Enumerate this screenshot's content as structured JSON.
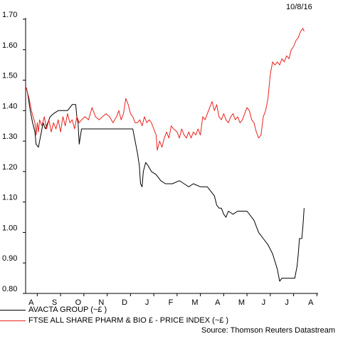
{
  "date_label": "10/8/16",
  "source_label": "Source: Thomson Reuters Datastream",
  "chart_data": {
    "type": "line",
    "x": [
      "A",
      "S",
      "O",
      "N",
      "D",
      "J",
      "F",
      "M",
      "A",
      "M",
      "J",
      "J",
      "A"
    ],
    "ylim": [
      0.8,
      1.7
    ],
    "yticks": [
      "1.70",
      "1.60",
      "1.50",
      "1.40",
      "1.30",
      "1.20",
      "1.10",
      "1.00",
      "0.90",
      "0.80"
    ],
    "grid": false,
    "legend_position": "bottom",
    "series": [
      {
        "name": "AVACTA GROUP (~£ )",
        "color": "#000000",
        "points": [
          [
            0.0,
            1.48
          ],
          [
            0.05,
            1.47
          ],
          [
            0.1,
            1.45
          ],
          [
            0.2,
            1.4
          ],
          [
            0.3,
            1.36
          ],
          [
            0.4,
            1.33
          ],
          [
            0.45,
            1.29
          ],
          [
            0.55,
            1.28
          ],
          [
            0.65,
            1.32
          ],
          [
            0.75,
            1.36
          ],
          [
            0.85,
            1.34
          ],
          [
            0.95,
            1.36
          ],
          [
            1.05,
            1.38
          ],
          [
            1.2,
            1.39
          ],
          [
            1.4,
            1.4
          ],
          [
            1.6,
            1.4
          ],
          [
            1.8,
            1.4
          ],
          [
            2.0,
            1.42
          ],
          [
            2.15,
            1.42
          ],
          [
            2.2,
            1.38
          ],
          [
            2.25,
            1.36
          ],
          [
            2.3,
            1.29
          ],
          [
            2.4,
            1.34
          ],
          [
            2.6,
            1.34
          ],
          [
            3.0,
            1.34
          ],
          [
            3.5,
            1.34
          ],
          [
            4.0,
            1.34
          ],
          [
            4.4,
            1.34
          ],
          [
            4.6,
            1.34
          ],
          [
            4.7,
            1.3
          ],
          [
            4.8,
            1.26
          ],
          [
            4.88,
            1.22
          ],
          [
            4.93,
            1.16
          ],
          [
            5.0,
            1.15
          ],
          [
            5.05,
            1.2
          ],
          [
            5.15,
            1.23
          ],
          [
            5.25,
            1.22
          ],
          [
            5.4,
            1.2
          ],
          [
            5.6,
            1.19
          ],
          [
            5.8,
            1.17
          ],
          [
            6.0,
            1.16
          ],
          [
            6.3,
            1.16
          ],
          [
            6.6,
            1.17
          ],
          [
            6.8,
            1.16
          ],
          [
            7.0,
            1.15
          ],
          [
            7.2,
            1.16
          ],
          [
            7.5,
            1.15
          ],
          [
            7.8,
            1.15
          ],
          [
            8.0,
            1.13
          ],
          [
            8.1,
            1.12
          ],
          [
            8.2,
            1.09
          ],
          [
            8.3,
            1.08
          ],
          [
            8.4,
            1.08
          ],
          [
            8.5,
            1.06
          ],
          [
            8.6,
            1.05
          ],
          [
            8.7,
            1.07
          ],
          [
            8.9,
            1.06
          ],
          [
            9.1,
            1.07
          ],
          [
            9.3,
            1.07
          ],
          [
            9.5,
            1.07
          ],
          [
            9.7,
            1.05
          ],
          [
            9.8,
            1.04
          ],
          [
            9.9,
            1.02
          ],
          [
            10.0,
            1.0
          ],
          [
            10.2,
            0.98
          ],
          [
            10.4,
            0.96
          ],
          [
            10.6,
            0.93
          ],
          [
            10.8,
            0.88
          ],
          [
            10.9,
            0.84
          ],
          [
            11.0,
            0.85
          ],
          [
            11.2,
            0.85
          ],
          [
            11.4,
            0.85
          ],
          [
            11.55,
            0.85
          ],
          [
            11.65,
            0.89
          ],
          [
            11.7,
            0.93
          ],
          [
            11.75,
            0.98
          ],
          [
            11.85,
            0.98
          ],
          [
            11.9,
            1.02
          ],
          [
            11.95,
            1.08
          ]
        ]
      },
      {
        "name": "FTSE ALL SHARE PHARM & BIO £ - PRICE INDEX (~£ )",
        "color": "#e8231e",
        "points": [
          [
            0.0,
            1.48
          ],
          [
            0.08,
            1.46
          ],
          [
            0.15,
            1.44
          ],
          [
            0.25,
            1.4
          ],
          [
            0.32,
            1.38
          ],
          [
            0.4,
            1.36
          ],
          [
            0.45,
            1.32
          ],
          [
            0.5,
            1.36
          ],
          [
            0.55,
            1.33
          ],
          [
            0.6,
            1.37
          ],
          [
            0.7,
            1.35
          ],
          [
            0.8,
            1.38
          ],
          [
            0.9,
            1.34
          ],
          [
            1.0,
            1.37
          ],
          [
            1.1,
            1.33
          ],
          [
            1.2,
            1.36
          ],
          [
            1.3,
            1.34
          ],
          [
            1.4,
            1.37
          ],
          [
            1.5,
            1.33
          ],
          [
            1.6,
            1.38
          ],
          [
            1.7,
            1.35
          ],
          [
            1.8,
            1.39
          ],
          [
            1.9,
            1.36
          ],
          [
            2.0,
            1.37
          ],
          [
            2.1,
            1.34
          ],
          [
            2.2,
            1.38
          ],
          [
            2.3,
            1.36
          ],
          [
            2.4,
            1.37
          ],
          [
            2.55,
            1.38
          ],
          [
            2.7,
            1.37
          ],
          [
            2.85,
            1.41
          ],
          [
            3.0,
            1.38
          ],
          [
            3.15,
            1.37
          ],
          [
            3.3,
            1.38
          ],
          [
            3.45,
            1.39
          ],
          [
            3.6,
            1.38
          ],
          [
            3.75,
            1.36
          ],
          [
            3.9,
            1.38
          ],
          [
            4.0,
            1.4
          ],
          [
            4.1,
            1.37
          ],
          [
            4.2,
            1.39
          ],
          [
            4.3,
            1.44
          ],
          [
            4.4,
            1.42
          ],
          [
            4.5,
            1.39
          ],
          [
            4.6,
            1.38
          ],
          [
            4.7,
            1.36
          ],
          [
            4.8,
            1.36
          ],
          [
            4.9,
            1.37
          ],
          [
            5.0,
            1.35
          ],
          [
            5.1,
            1.38
          ],
          [
            5.2,
            1.36
          ],
          [
            5.3,
            1.37
          ],
          [
            5.4,
            1.36
          ],
          [
            5.5,
            1.34
          ],
          [
            5.6,
            1.32
          ],
          [
            5.65,
            1.27
          ],
          [
            5.75,
            1.3
          ],
          [
            5.85,
            1.28
          ],
          [
            5.95,
            1.31
          ],
          [
            6.05,
            1.33
          ],
          [
            6.15,
            1.31
          ],
          [
            6.25,
            1.35
          ],
          [
            6.35,
            1.34
          ],
          [
            6.5,
            1.33
          ],
          [
            6.6,
            1.31
          ],
          [
            6.7,
            1.34
          ],
          [
            6.8,
            1.32
          ],
          [
            6.9,
            1.31
          ],
          [
            7.0,
            1.33
          ],
          [
            7.1,
            1.31
          ],
          [
            7.2,
            1.33
          ],
          [
            7.3,
            1.32
          ],
          [
            7.4,
            1.34
          ],
          [
            7.5,
            1.32
          ],
          [
            7.6,
            1.38
          ],
          [
            7.7,
            1.37
          ],
          [
            7.8,
            1.39
          ],
          [
            7.9,
            1.41
          ],
          [
            8.0,
            1.43
          ],
          [
            8.1,
            1.4
          ],
          [
            8.2,
            1.42
          ],
          [
            8.3,
            1.38
          ],
          [
            8.4,
            1.37
          ],
          [
            8.5,
            1.39
          ],
          [
            8.6,
            1.37
          ],
          [
            8.7,
            1.36
          ],
          [
            8.8,
            1.38
          ],
          [
            8.9,
            1.39
          ],
          [
            9.0,
            1.37
          ],
          [
            9.1,
            1.38
          ],
          [
            9.2,
            1.36
          ],
          [
            9.3,
            1.37
          ],
          [
            9.4,
            1.39
          ],
          [
            9.5,
            1.41
          ],
          [
            9.6,
            1.4
          ],
          [
            9.7,
            1.37
          ],
          [
            9.8,
            1.36
          ],
          [
            9.9,
            1.33
          ],
          [
            10.0,
            1.31
          ],
          [
            10.1,
            1.32
          ],
          [
            10.15,
            1.35
          ],
          [
            10.2,
            1.38
          ],
          [
            10.3,
            1.4
          ],
          [
            10.4,
            1.44
          ],
          [
            10.5,
            1.52
          ],
          [
            10.6,
            1.56
          ],
          [
            10.7,
            1.55
          ],
          [
            10.8,
            1.56
          ],
          [
            10.9,
            1.55
          ],
          [
            11.0,
            1.57
          ],
          [
            11.1,
            1.56
          ],
          [
            11.2,
            1.58
          ],
          [
            11.3,
            1.57
          ],
          [
            11.4,
            1.6
          ],
          [
            11.5,
            1.61
          ],
          [
            11.6,
            1.63
          ],
          [
            11.7,
            1.64
          ],
          [
            11.8,
            1.66
          ],
          [
            11.9,
            1.67
          ],
          [
            11.95,
            1.66
          ]
        ]
      }
    ]
  }
}
